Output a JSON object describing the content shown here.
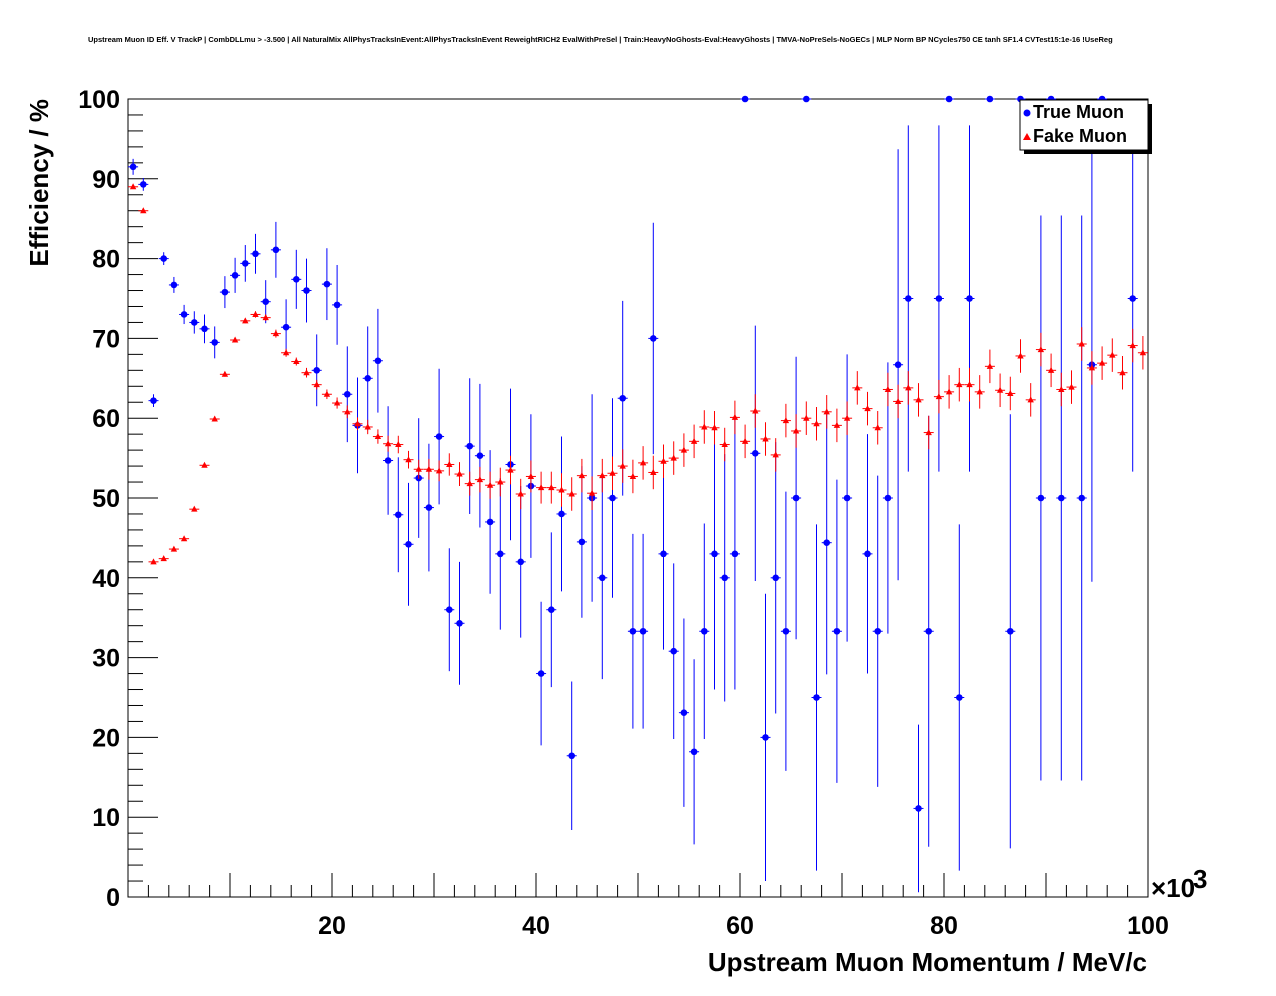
{
  "chart_data": {
    "type": "scatter",
    "title": "Upstream Muon ID Eff. V TrackP | CombDLLmu > -3.500 | All NaturalMix AllPhysTracksInEvent:AllPhysTracksInEvent ReweightRICH2 EvalWithPreSel | Train:HeavyNoGhosts-Eval:HeavyGhosts | TMVA-NoPreSels-NoGECs | MLP Norm BP NCycles750 CE tanh SF1.4 CVTest15:1e-16 !UseReg",
    "xlabel": "Upstream Muon Momentum / MeV/c",
    "ylabel": "Efficiency / %",
    "x_multiplier_label": "×10",
    "x_multiplier_exp": "3",
    "xlim": [
      0,
      100
    ],
    "ylim": [
      0,
      100
    ],
    "x_ticks": [
      20,
      40,
      60,
      80,
      100
    ],
    "y_ticks": [
      0,
      10,
      20,
      30,
      40,
      50,
      60,
      70,
      80,
      90,
      100
    ],
    "legend": {
      "position": "top-right",
      "entries": [
        "True Muon",
        "Fake Muon"
      ]
    },
    "series": [
      {
        "name": "True Muon",
        "color": "#0000ff",
        "marker": "circle",
        "points": [
          {
            "x": 0.5,
            "y": 91.5,
            "err": 1.0
          },
          {
            "x": 1.5,
            "y": 89.3,
            "err": 0.8
          },
          {
            "x": 2.5,
            "y": 62.2,
            "err": 0.8
          },
          {
            "x": 3.5,
            "y": 80.0,
            "err": 0.8
          },
          {
            "x": 4.5,
            "y": 76.7,
            "err": 1.0
          },
          {
            "x": 5.5,
            "y": 73.0,
            "err": 1.2
          },
          {
            "x": 6.5,
            "y": 72.0,
            "err": 1.4
          },
          {
            "x": 7.5,
            "y": 71.2,
            "err": 1.8
          },
          {
            "x": 8.5,
            "y": 69.5,
            "err": 2.0
          },
          {
            "x": 9.5,
            "y": 75.8,
            "err": 2.0
          },
          {
            "x": 10.5,
            "y": 77.9,
            "err": 2.2
          },
          {
            "x": 11.5,
            "y": 79.4,
            "err": 2.3
          },
          {
            "x": 12.5,
            "y": 80.6,
            "err": 2.5
          },
          {
            "x": 13.5,
            "y": 74.6,
            "err": 2.7
          },
          {
            "x": 14.5,
            "y": 81.1,
            "err": 3.5
          },
          {
            "x": 15.5,
            "y": 71.4,
            "err": 3.5
          },
          {
            "x": 16.5,
            "y": 77.4,
            "err": 3.7
          },
          {
            "x": 17.5,
            "y": 76.0,
            "err": 4.0
          },
          {
            "x": 18.5,
            "y": 66.0,
            "err": 4.5
          },
          {
            "x": 19.5,
            "y": 76.8,
            "err": 4.5
          },
          {
            "x": 20.5,
            "y": 74.2,
            "err": 5.0
          },
          {
            "x": 21.5,
            "y": 63.0,
            "err": 6.0
          },
          {
            "x": 22.5,
            "y": 59.1,
            "err": 6.0
          },
          {
            "x": 23.5,
            "y": 65.0,
            "err": 6.5
          },
          {
            "x": 24.5,
            "y": 67.2,
            "err": 6.5
          },
          {
            "x": 25.5,
            "y": 54.7,
            "err": 6.8
          },
          {
            "x": 26.5,
            "y": 47.9,
            "err": 7.2
          },
          {
            "x": 27.5,
            "y": 44.2,
            "err": 7.7
          },
          {
            "x": 28.5,
            "y": 52.5,
            "err": 7.5
          },
          {
            "x": 29.5,
            "y": 48.8,
            "err": 8.0
          },
          {
            "x": 30.5,
            "y": 57.7,
            "err": 8.5
          },
          {
            "x": 31.5,
            "y": 36.0,
            "err": 7.7
          },
          {
            "x": 32.5,
            "y": 34.3,
            "err": 7.7
          },
          {
            "x": 33.5,
            "y": 56.5,
            "err": 8.5
          },
          {
            "x": 34.5,
            "y": 55.3,
            "err": 9.0
          },
          {
            "x": 35.5,
            "y": 47.0,
            "err": 9.0
          },
          {
            "x": 36.5,
            "y": 43.0,
            "err": 9.5
          },
          {
            "x": 37.5,
            "y": 54.2,
            "err": 9.5
          },
          {
            "x": 38.5,
            "y": 42.0,
            "err": 9.5
          },
          {
            "x": 39.5,
            "y": 51.5,
            "err": 9.0
          },
          {
            "x": 40.5,
            "y": 28.0,
            "err": 9.0
          },
          {
            "x": 41.5,
            "y": 36.0,
            "err": 9.7
          },
          {
            "x": 42.5,
            "y": 48.0,
            "err": 9.7
          },
          {
            "x": 43.5,
            "y": 17.7,
            "err": 9.3
          },
          {
            "x": 44.5,
            "y": 44.5,
            "err": 9.5
          },
          {
            "x": 45.5,
            "y": 50.0,
            "err": 13.0
          },
          {
            "x": 46.5,
            "y": 40.0,
            "err": 12.7
          },
          {
            "x": 47.5,
            "y": 50.0,
            "err": 12.5
          },
          {
            "x": 48.5,
            "y": 62.5,
            "err": 12.2
          },
          {
            "x": 49.5,
            "y": 33.3,
            "err": 12.2
          },
          {
            "x": 50.5,
            "y": 33.3,
            "err": 12.2
          },
          {
            "x": 51.5,
            "y": 70.0,
            "err": 14.5
          },
          {
            "x": 52.5,
            "y": 43.0,
            "err": 12.0
          },
          {
            "x": 53.5,
            "y": 30.8,
            "err": 11.0
          },
          {
            "x": 54.5,
            "y": 23.1,
            "err": 11.8
          },
          {
            "x": 55.5,
            "y": 18.2,
            "err": 11.6
          },
          {
            "x": 56.5,
            "y": 33.3,
            "err": 13.5
          },
          {
            "x": 57.5,
            "y": 43.0,
            "err": 17.0
          },
          {
            "x": 58.5,
            "y": 40.0,
            "err": 15.5
          },
          {
            "x": 59.5,
            "y": 43.0,
            "err": 17.0
          },
          {
            "x": 60.5,
            "y": 100.0,
            "err": 0
          },
          {
            "x": 61.5,
            "y": 55.6,
            "err": 16.0
          },
          {
            "x": 62.5,
            "y": 20.0,
            "err": 18.0
          },
          {
            "x": 63.5,
            "y": 40.0,
            "err": 17.0
          },
          {
            "x": 64.5,
            "y": 33.3,
            "err": 17.5
          },
          {
            "x": 65.5,
            "y": 50.0,
            "err": 17.7
          },
          {
            "x": 66.5,
            "y": 100.0,
            "err": 0
          },
          {
            "x": 67.5,
            "y": 25.0,
            "err": 21.7
          },
          {
            "x": 68.5,
            "y": 44.4,
            "err": 16.5
          },
          {
            "x": 69.5,
            "y": 33.3,
            "err": 19.0
          },
          {
            "x": 70.5,
            "y": 50.0,
            "err": 18.0
          },
          {
            "x": 72.5,
            "y": 43.0,
            "err": 15.0
          },
          {
            "x": 73.5,
            "y": 33.3,
            "err": 19.5
          },
          {
            "x": 74.5,
            "y": 50.0,
            "err": 17.0
          },
          {
            "x": 75.5,
            "y": 66.7,
            "err": 27.0
          },
          {
            "x": 76.5,
            "y": 75.0,
            "err": 21.7
          },
          {
            "x": 77.5,
            "y": 11.1,
            "err": 10.5
          },
          {
            "x": 78.5,
            "y": 33.3,
            "err": 27.0
          },
          {
            "x": 79.5,
            "y": 75.0,
            "err": 21.7
          },
          {
            "x": 80.5,
            "y": 100.0,
            "err": 0
          },
          {
            "x": 81.5,
            "y": 25.0,
            "err": 21.7
          },
          {
            "x": 82.5,
            "y": 75.0,
            "err": 21.7
          },
          {
            "x": 84.5,
            "y": 100.0,
            "err": 0
          },
          {
            "x": 86.5,
            "y": 33.3,
            "err": 27.2
          },
          {
            "x": 87.5,
            "y": 100.0,
            "err": 0
          },
          {
            "x": 89.5,
            "y": 50.0,
            "err": 35.4
          },
          {
            "x": 90.5,
            "y": 100.0,
            "err": 0
          },
          {
            "x": 91.5,
            "y": 50.0,
            "err": 35.4
          },
          {
            "x": 93.5,
            "y": 50.0,
            "err": 35.4
          },
          {
            "x": 94.5,
            "y": 66.7,
            "err": 27.2
          },
          {
            "x": 95.5,
            "y": 100.0,
            "err": 0
          },
          {
            "x": 98.5,
            "y": 75.0,
            "err": 21.7
          }
        ]
      },
      {
        "name": "Fake Muon",
        "color": "#ff0000",
        "marker": "triangle",
        "points": [
          {
            "x": 0.5,
            "y": 89.0,
            "err": 0.2
          },
          {
            "x": 1.5,
            "y": 86.0,
            "err": 0.2
          },
          {
            "x": 2.5,
            "y": 42.0,
            "err": 0.2
          },
          {
            "x": 3.5,
            "y": 42.4,
            "err": 0.2
          },
          {
            "x": 4.5,
            "y": 43.6,
            "err": 0.2
          },
          {
            "x": 5.5,
            "y": 44.9,
            "err": 0.2
          },
          {
            "x": 6.5,
            "y": 48.6,
            "err": 0.2
          },
          {
            "x": 7.5,
            "y": 54.1,
            "err": 0.2
          },
          {
            "x": 8.5,
            "y": 59.9,
            "err": 0.3
          },
          {
            "x": 9.5,
            "y": 65.5,
            "err": 0.3
          },
          {
            "x": 10.5,
            "y": 69.8,
            "err": 0.3
          },
          {
            "x": 11.5,
            "y": 72.2,
            "err": 0.3
          },
          {
            "x": 12.5,
            "y": 73.0,
            "err": 0.4
          },
          {
            "x": 13.5,
            "y": 72.6,
            "err": 0.4
          },
          {
            "x": 14.5,
            "y": 70.6,
            "err": 0.5
          },
          {
            "x": 15.5,
            "y": 68.2,
            "err": 0.5
          },
          {
            "x": 16.5,
            "y": 67.1,
            "err": 0.5
          },
          {
            "x": 17.5,
            "y": 65.7,
            "err": 0.6
          },
          {
            "x": 18.5,
            "y": 64.2,
            "err": 0.6
          },
          {
            "x": 19.5,
            "y": 63.0,
            "err": 0.6
          },
          {
            "x": 20.5,
            "y": 61.9,
            "err": 0.7
          },
          {
            "x": 21.5,
            "y": 60.8,
            "err": 0.8
          },
          {
            "x": 22.5,
            "y": 59.3,
            "err": 0.8
          },
          {
            "x": 23.5,
            "y": 58.9,
            "err": 0.9
          },
          {
            "x": 24.5,
            "y": 57.7,
            "err": 0.9
          },
          {
            "x": 25.5,
            "y": 56.8,
            "err": 1.0
          },
          {
            "x": 26.5,
            "y": 56.7,
            "err": 1.1
          },
          {
            "x": 27.5,
            "y": 54.8,
            "err": 1.1
          },
          {
            "x": 28.5,
            "y": 53.6,
            "err": 1.2
          },
          {
            "x": 29.5,
            "y": 53.6,
            "err": 1.3
          },
          {
            "x": 30.5,
            "y": 53.4,
            "err": 1.3
          },
          {
            "x": 31.5,
            "y": 54.2,
            "err": 1.4
          },
          {
            "x": 32.5,
            "y": 53.0,
            "err": 1.5
          },
          {
            "x": 33.5,
            "y": 51.8,
            "err": 1.5
          },
          {
            "x": 34.5,
            "y": 52.3,
            "err": 1.6
          },
          {
            "x": 35.5,
            "y": 51.6,
            "err": 1.7
          },
          {
            "x": 36.5,
            "y": 52.0,
            "err": 1.8
          },
          {
            "x": 37.5,
            "y": 53.5,
            "err": 1.8
          },
          {
            "x": 38.5,
            "y": 50.5,
            "err": 1.9
          },
          {
            "x": 39.5,
            "y": 52.7,
            "err": 2.0
          },
          {
            "x": 40.5,
            "y": 51.3,
            "err": 2.0
          },
          {
            "x": 41.5,
            "y": 51.3,
            "err": 2.0
          },
          {
            "x": 42.5,
            "y": 51.0,
            "err": 2.1
          },
          {
            "x": 43.5,
            "y": 50.5,
            "err": 2.1
          },
          {
            "x": 44.5,
            "y": 52.8,
            "err": 2.1
          },
          {
            "x": 45.5,
            "y": 50.6,
            "err": 2.1
          },
          {
            "x": 46.5,
            "y": 52.8,
            "err": 2.1
          },
          {
            "x": 47.5,
            "y": 53.1,
            "err": 2.1
          },
          {
            "x": 48.5,
            "y": 54.0,
            "err": 2.1
          },
          {
            "x": 49.5,
            "y": 52.7,
            "err": 2.1
          },
          {
            "x": 50.5,
            "y": 54.4,
            "err": 2.1
          },
          {
            "x": 51.5,
            "y": 53.2,
            "err": 2.1
          },
          {
            "x": 52.5,
            "y": 54.6,
            "err": 2.1
          },
          {
            "x": 53.5,
            "y": 55.0,
            "err": 2.1
          },
          {
            "x": 54.5,
            "y": 56.0,
            "err": 2.1
          },
          {
            "x": 55.5,
            "y": 57.1,
            "err": 2.1
          },
          {
            "x": 56.5,
            "y": 58.9,
            "err": 2.1
          },
          {
            "x": 57.5,
            "y": 58.8,
            "err": 2.1
          },
          {
            "x": 58.5,
            "y": 56.7,
            "err": 2.1
          },
          {
            "x": 59.5,
            "y": 60.1,
            "err": 2.1
          },
          {
            "x": 60.5,
            "y": 57.1,
            "err": 2.1
          },
          {
            "x": 61.5,
            "y": 60.9,
            "err": 2.1
          },
          {
            "x": 62.5,
            "y": 57.4,
            "err": 2.1
          },
          {
            "x": 63.5,
            "y": 55.4,
            "err": 2.1
          },
          {
            "x": 64.5,
            "y": 59.7,
            "err": 2.1
          },
          {
            "x": 65.5,
            "y": 58.4,
            "err": 2.1
          },
          {
            "x": 66.5,
            "y": 60.0,
            "err": 2.1
          },
          {
            "x": 67.5,
            "y": 59.3,
            "err": 2.1
          },
          {
            "x": 68.5,
            "y": 60.8,
            "err": 2.1
          },
          {
            "x": 69.5,
            "y": 59.1,
            "err": 2.1
          },
          {
            "x": 70.5,
            "y": 60.0,
            "err": 2.1
          },
          {
            "x": 71.5,
            "y": 63.8,
            "err": 2.1
          },
          {
            "x": 72.5,
            "y": 61.2,
            "err": 2.1
          },
          {
            "x": 73.5,
            "y": 58.8,
            "err": 2.1
          },
          {
            "x": 74.5,
            "y": 63.6,
            "err": 2.1
          },
          {
            "x": 75.5,
            "y": 62.1,
            "err": 2.1
          },
          {
            "x": 76.5,
            "y": 63.8,
            "err": 2.1
          },
          {
            "x": 77.5,
            "y": 62.3,
            "err": 2.1
          },
          {
            "x": 78.5,
            "y": 58.2,
            "err": 2.1
          },
          {
            "x": 79.5,
            "y": 62.7,
            "err": 2.1
          },
          {
            "x": 80.5,
            "y": 63.3,
            "err": 2.1
          },
          {
            "x": 81.5,
            "y": 64.2,
            "err": 2.1
          },
          {
            "x": 82.5,
            "y": 64.2,
            "err": 2.1
          },
          {
            "x": 83.5,
            "y": 63.3,
            "err": 2.1
          },
          {
            "x": 84.5,
            "y": 66.5,
            "err": 2.1
          },
          {
            "x": 85.5,
            "y": 63.5,
            "err": 2.1
          },
          {
            "x": 86.5,
            "y": 63.1,
            "err": 2.1
          },
          {
            "x": 87.5,
            "y": 67.8,
            "err": 2.1
          },
          {
            "x": 88.5,
            "y": 62.3,
            "err": 2.1
          },
          {
            "x": 89.5,
            "y": 68.6,
            "err": 2.1
          },
          {
            "x": 90.5,
            "y": 66.0,
            "err": 2.1
          },
          {
            "x": 91.5,
            "y": 63.6,
            "err": 2.1
          },
          {
            "x": 92.5,
            "y": 63.9,
            "err": 2.1
          },
          {
            "x": 93.5,
            "y": 69.3,
            "err": 2.1
          },
          {
            "x": 94.5,
            "y": 66.3,
            "err": 2.1
          },
          {
            "x": 95.5,
            "y": 66.9,
            "err": 2.1
          },
          {
            "x": 96.5,
            "y": 67.9,
            "err": 2.1
          },
          {
            "x": 97.5,
            "y": 65.7,
            "err": 2.1
          },
          {
            "x": 98.5,
            "y": 69.1,
            "err": 2.1
          },
          {
            "x": 99.5,
            "y": 68.2,
            "err": 2.1
          }
        ]
      }
    ]
  }
}
